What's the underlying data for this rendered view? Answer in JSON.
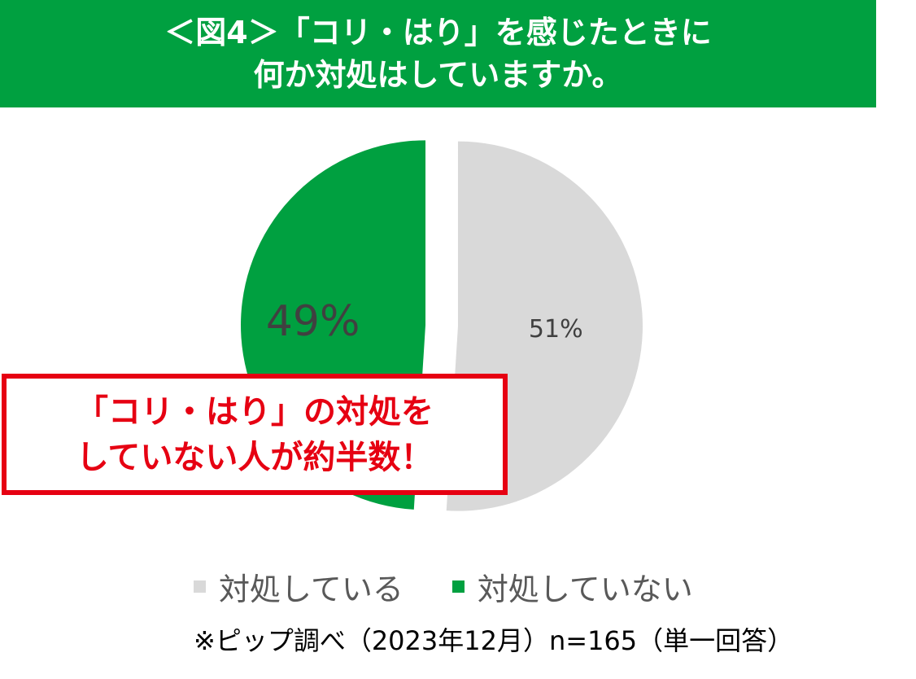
{
  "header": {
    "line1": "＜図4＞「コリ・はり」を感じたときに",
    "line2": "何か対処はしていますか。"
  },
  "colors": {
    "header_bg": "#00a040",
    "callout_accent": "#e60012"
  },
  "chart_data": {
    "type": "pie",
    "slices": [
      {
        "label": "対処している",
        "value": 51,
        "display": "51%",
        "color": "#d9d9d9"
      },
      {
        "label": "対処していない",
        "value": 49,
        "display": "49%",
        "color": "#00a040"
      }
    ]
  },
  "callout": {
    "line1": "「コリ・はり」の対処を",
    "line2": "していない人が約半数！"
  },
  "legend": {
    "items": [
      {
        "label": "対処している",
        "color": "#d9d9d9"
      },
      {
        "label": "対処していない",
        "color": "#00a040"
      }
    ]
  },
  "note": "※ピップ調べ（2023年12月）n=165（単一回答）"
}
